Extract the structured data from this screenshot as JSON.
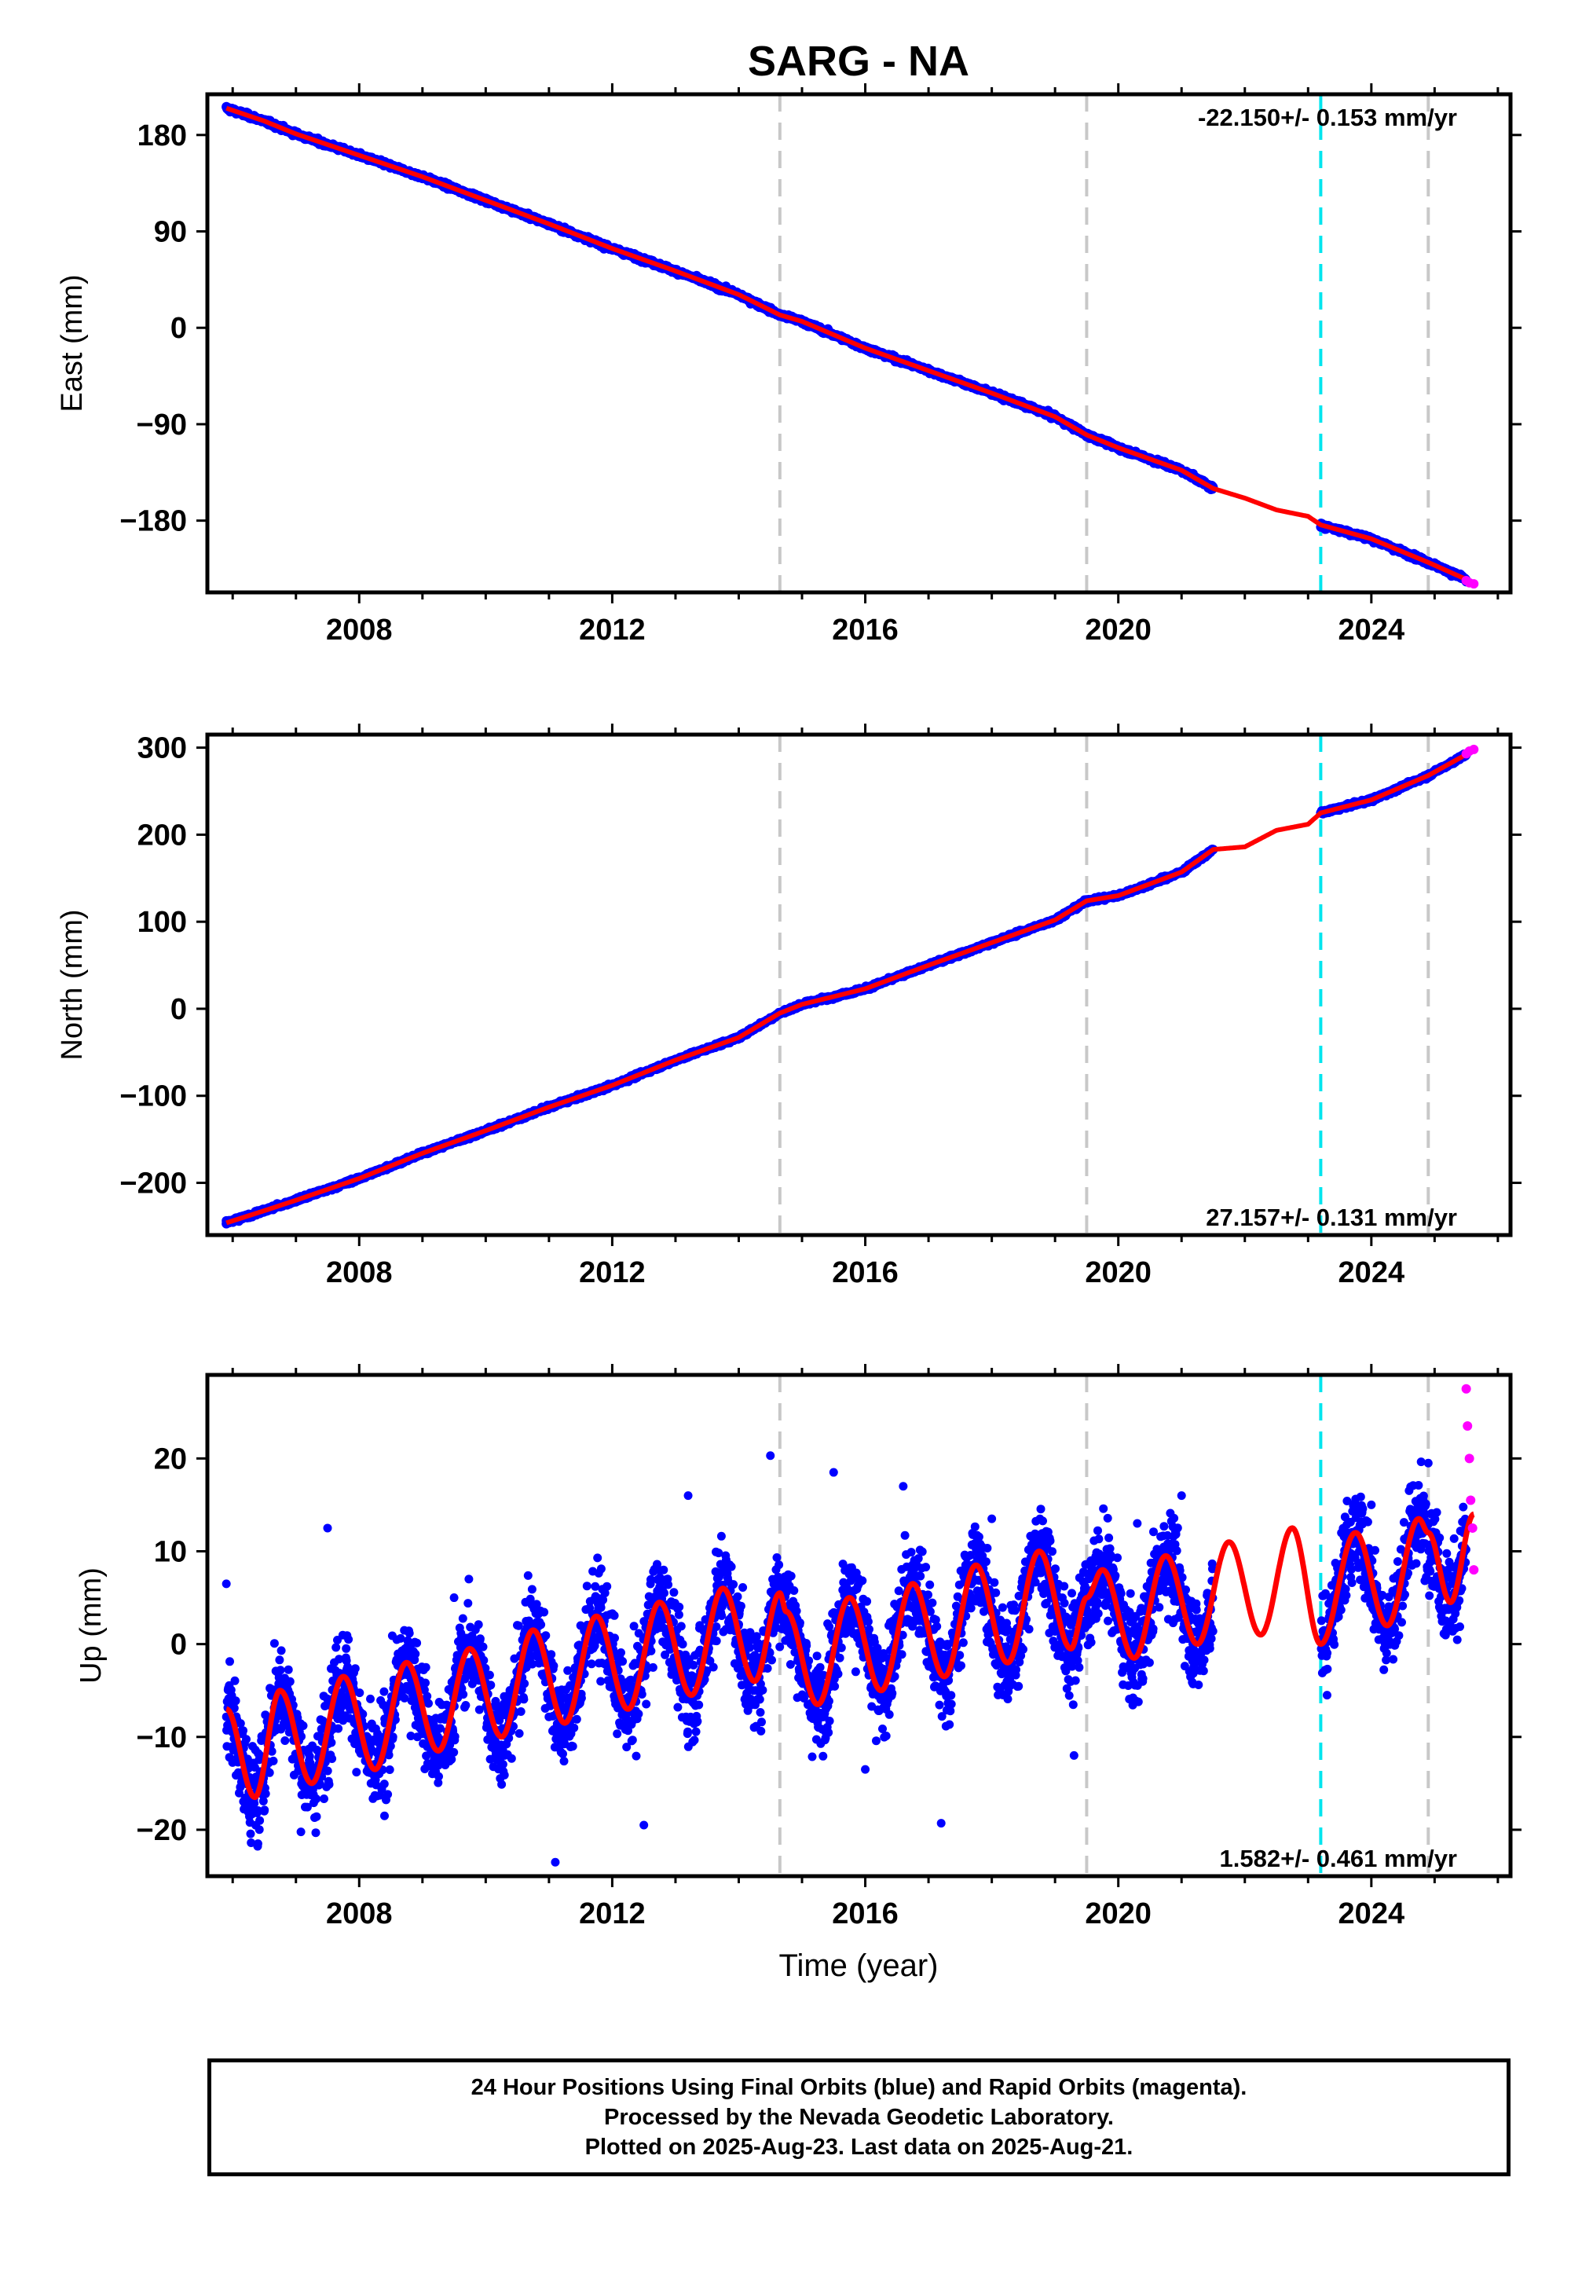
{
  "title": "SARG - NA",
  "colors": {
    "final_orbits": "#0000ff",
    "rapid_orbits": "#ff00ff",
    "model_fit": "#ff0000",
    "equipment_change": "#c8c8c8",
    "earthquake": "#00e5ee"
  },
  "xlabel": "Time (year)",
  "footer": {
    "line1": "24 Hour Positions Using Final Orbits (blue) and Rapid Orbits (magenta).",
    "line2": "Processed by the Nevada Geodetic Laboratory.",
    "line3": "Plotted on 2025-Aug-23. Last data on 2025-Aug-21."
  },
  "chart_data": [
    {
      "type": "scatter",
      "panel": "east",
      "ylabel": "East (mm)",
      "rate_label": "-22.150+/- 0.153 mm/yr",
      "xlim": [
        2005.6,
        2026.2
      ],
      "ylim": [
        -247,
        218
      ],
      "xticks": [
        2008,
        2012,
        2016,
        2020,
        2024
      ],
      "yticks": [
        -180,
        -90,
        0,
        90,
        180
      ],
      "grid": false,
      "equipment_changes": [
        2014.65,
        2019.5,
        2024.9
      ],
      "earthquakes": [
        2023.2
      ],
      "gap": [
        2021.5,
        2023.2
      ],
      "series": [
        {
          "name": "Final Orbits",
          "x": [
            2005.9,
            2006.5,
            2007.0,
            2008.0,
            2009.0,
            2010.0,
            2011.0,
            2012.0,
            2013.0,
            2014.0,
            2014.65,
            2015.0,
            2016.0,
            2017.0,
            2018.0,
            2019.0,
            2019.5,
            2020.0,
            2021.0,
            2021.5,
            2023.2,
            2024.0,
            2024.9,
            2025.5
          ],
          "y": [
            206,
            193,
            180,
            160,
            140,
            118,
            97,
            73,
            52,
            30,
            12,
            5,
            -20,
            -40,
            -60,
            -83,
            -100,
            -112,
            -133,
            -149,
            -186,
            -198,
            -220,
            -237
          ]
        },
        {
          "name": "Rapid Orbits",
          "x": [
            2025.5,
            2025.55,
            2025.62
          ],
          "y": [
            -236,
            -238,
            -239
          ]
        }
      ],
      "model_fit": {
        "x": [
          2005.9,
          2006.5,
          2007.0,
          2008.0,
          2009.0,
          2010.0,
          2011.0,
          2012.0,
          2013.0,
          2014.0,
          2014.65,
          2015.0,
          2016.0,
          2017.0,
          2018.0,
          2019.0,
          2019.5,
          2020.0,
          2021.0,
          2021.5,
          2022.0,
          2022.5,
          2023.0,
          2023.2,
          2024.0,
          2024.9,
          2025.62
        ],
        "y": [
          205,
          193,
          181,
          161,
          141,
          119,
          97,
          74,
          53,
          31,
          12,
          6,
          -19,
          -40,
          -61,
          -83,
          -100,
          -112,
          -133,
          -150,
          -159,
          -170,
          -176,
          -184,
          -197,
          -219,
          -238
        ]
      }
    },
    {
      "type": "scatter",
      "panel": "north",
      "ylabel": "North (mm)",
      "rate_label": "27.157+/- 0.131 mm/yr",
      "xlim": [
        2005.6,
        2026.2
      ],
      "ylim": [
        -260,
        315
      ],
      "xticks": [
        2008,
        2012,
        2016,
        2020,
        2024
      ],
      "yticks": [
        -200,
        -100,
        0,
        100,
        200,
        300
      ],
      "grid": false,
      "equipment_changes": [
        2014.65,
        2019.5,
        2024.9
      ],
      "earthquakes": [
        2023.2
      ],
      "gap": [
        2021.5,
        2023.2
      ],
      "series": [
        {
          "name": "Final Orbits",
          "x": [
            2005.9,
            2006.5,
            2007.0,
            2008.0,
            2009.0,
            2010.0,
            2011.0,
            2012.0,
            2013.0,
            2014.0,
            2014.65,
            2015.0,
            2016.0,
            2017.0,
            2018.0,
            2019.0,
            2019.5,
            2020.0,
            2021.0,
            2021.5,
            2023.2,
            2024.0,
            2024.9,
            2025.5
          ],
          "y": [
            -247,
            -232,
            -220,
            -195,
            -165,
            -140,
            -112,
            -87,
            -58,
            -32,
            -5,
            5,
            23,
            50,
            75,
            102,
            125,
            130,
            157,
            183,
            225,
            240,
            268,
            292
          ]
        },
        {
          "name": "Rapid Orbits",
          "x": [
            2025.5,
            2025.55,
            2025.62
          ],
          "y": [
            293,
            296,
            298
          ]
        }
      ],
      "model_fit": {
        "x": [
          2005.9,
          2006.5,
          2007.0,
          2008.0,
          2009.0,
          2010.0,
          2011.0,
          2012.0,
          2013.0,
          2014.0,
          2014.65,
          2015.0,
          2016.0,
          2017.0,
          2018.0,
          2019.0,
          2019.5,
          2020.0,
          2021.0,
          2021.5,
          2022.0,
          2022.5,
          2023.0,
          2023.2,
          2024.0,
          2024.9,
          2025.62
        ],
        "y": [
          -246,
          -232,
          -220,
          -195,
          -166,
          -140,
          -113,
          -88,
          -59,
          -33,
          -5,
          5,
          23,
          50,
          76,
          102,
          124,
          130,
          157,
          183,
          186,
          205,
          212,
          225,
          240,
          268,
          297
        ]
      }
    },
    {
      "type": "scatter",
      "panel": "up",
      "ylabel": "Up (mm)",
      "rate_label": "1.582+/- 0.461 mm/yr",
      "xlim": [
        2005.6,
        2026.2
      ],
      "ylim": [
        -25,
        29
      ],
      "xticks": [
        2008,
        2012,
        2016,
        2020,
        2024
      ],
      "yticks": [
        -20,
        -10,
        0,
        10,
        20
      ],
      "grid": false,
      "equipment_changes": [
        2014.65,
        2019.5,
        2024.9
      ],
      "earthquakes": [
        2023.2
      ],
      "gap": [
        2021.5,
        2023.2
      ],
      "series": [
        {
          "name": "Final Orbits",
          "x": [
            2005.9,
            2006.4,
            2007.5,
            2008.4,
            2009.5,
            2010.3,
            2011.1,
            2011.5,
            2012.5,
            2013.2,
            2014.5,
            2015.5,
            2016.0,
            2016.6,
            2017.2,
            2018.0,
            2018.8,
            2019.3,
            2020.3,
            2021.0,
            2023.3,
            2024.0,
            2024.9,
            2025.4
          ],
          "y": [
            6.5,
            -21.5,
            12.5,
            -18.5,
            5.0,
            -12.0,
            -23.5,
            2.0,
            -19.5,
            16.0,
            20.3,
            18.5,
            -13.5,
            17.0,
            -19.3,
            13.5,
            10.0,
            -12.0,
            13.0,
            16.0,
            -5.5,
            15.0,
            19.5,
            7.5
          ]
        },
        {
          "name": "Rapid Orbits",
          "x": [
            2025.5,
            2025.52,
            2025.55,
            2025.57,
            2025.6,
            2025.62
          ],
          "y": [
            27.5,
            23.5,
            20.0,
            15.5,
            12.5,
            8.0
          ]
        }
      ],
      "model_fit": {
        "x": [
          2005.9,
          2006.35,
          2006.75,
          2007.25,
          2007.75,
          2008.25,
          2008.75,
          2009.25,
          2009.75,
          2010.25,
          2010.75,
          2011.25,
          2011.75,
          2012.25,
          2012.75,
          2013.25,
          2013.75,
          2014.25,
          2014.65,
          2014.75,
          2015.25,
          2015.75,
          2016.25,
          2016.75,
          2017.25,
          2017.75,
          2018.25,
          2018.75,
          2019.25,
          2019.5,
          2019.75,
          2020.25,
          2020.75,
          2021.25,
          2021.75,
          2022.25,
          2022.75,
          2023.2,
          2023.75,
          2024.25,
          2024.75,
          2024.9,
          2025.25,
          2025.62
        ],
        "y": [
          -7,
          -16.5,
          -5,
          -15,
          -3.5,
          -13.5,
          -2,
          -11.5,
          -0.5,
          -10,
          1.5,
          -8.5,
          3,
          -7,
          4.5,
          -5.5,
          6,
          -4,
          5.5,
          3.5,
          -6.5,
          5,
          -5,
          6.5,
          -3.5,
          8.5,
          -2,
          10,
          -0.5,
          5,
          8,
          -1.5,
          9.5,
          0,
          11,
          1,
          12.5,
          0,
          12,
          2,
          13.5,
          12,
          4.5,
          14
        ]
      }
    }
  ]
}
